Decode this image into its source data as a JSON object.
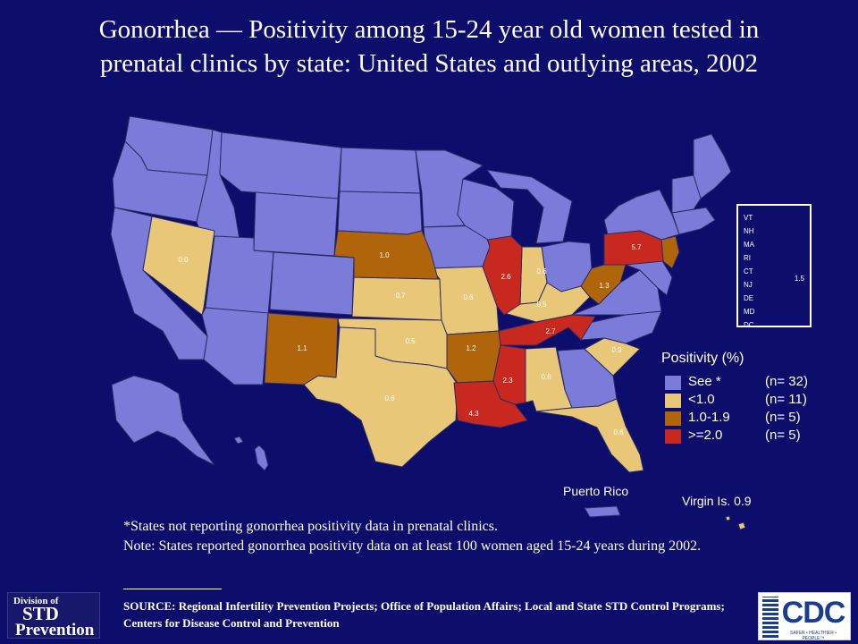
{
  "title_line1": "Gonorrhea — Positivity among 15-24 year old women tested in",
  "title_line2": "prenatal clinics by state: United States and outlying areas, 2002",
  "colors": {
    "background": "#0d0d6b",
    "not_reported": "#7b7bd9",
    "lt1": "#e8c878",
    "range_1_1_9": "#b0650a",
    "gte2": "#c8281e"
  },
  "state_values": [
    {
      "id": "NV",
      "value": "0.0"
    },
    {
      "id": "NE",
      "value": "1.0"
    },
    {
      "id": "KS",
      "value": "0.7"
    },
    {
      "id": "MO",
      "value": "0.6"
    },
    {
      "id": "IL",
      "value": "2.6"
    },
    {
      "id": "IN",
      "value": "0.6"
    },
    {
      "id": "KY",
      "value": "0.5"
    },
    {
      "id": "WV",
      "value": "1.3"
    },
    {
      "id": "PA",
      "value": "5.7"
    },
    {
      "id": "NM",
      "value": "1.1"
    },
    {
      "id": "OK",
      "value": "0.5"
    },
    {
      "id": "AR",
      "value": "1.2"
    },
    {
      "id": "TN",
      "value": "2.7"
    },
    {
      "id": "SC",
      "value": "0.9"
    },
    {
      "id": "TX",
      "value": "0.6"
    },
    {
      "id": "MS",
      "value": "2.3"
    },
    {
      "id": "AL",
      "value": "0.8"
    },
    {
      "id": "LA",
      "value": "4.3"
    },
    {
      "id": "FL",
      "value": "0.6"
    }
  ],
  "northeast_box": {
    "states": [
      "VT",
      "NH",
      "MA",
      "RI",
      "CT",
      "NJ",
      "DE",
      "MD",
      "DC"
    ],
    "nj_value": "1.5"
  },
  "legend": {
    "title": "Positivity (%)",
    "rows": [
      {
        "label": "See *",
        "count": "(n= 32)",
        "color": "#7b7bd9"
      },
      {
        "label": "<1.0",
        "count": "(n= 11)",
        "color": "#e8c878"
      },
      {
        "label": "1.0-1.9",
        "count": "(n=  5)",
        "color": "#b0650a"
      },
      {
        "label": ">=2.0",
        "count": "(n=  5)",
        "color": "#c8281e"
      }
    ]
  },
  "puerto_rico_label": "Puerto Rico",
  "virgin_islands_label": "Virgin Is. 0.9",
  "note_star": "*States not reporting gonorrhea positivity data in prenatal clinics.",
  "note_line": "Note: States reported gonorrhea positivity data on at least 100 women aged 15-24 years during 2002.",
  "source": "SOURCE: Regional Infertility Prevention Projects; Office of Population Affairs; Local and State STD Control Programs; Centers for Disease Control and Prevention",
  "logo_std": {
    "line1": "Division of",
    "line2": "STD",
    "line3": "Prevention"
  },
  "logo_cdc": {
    "word": "CDC",
    "tagline": "SAFER • HEALTHIER • PEOPLE™"
  }
}
